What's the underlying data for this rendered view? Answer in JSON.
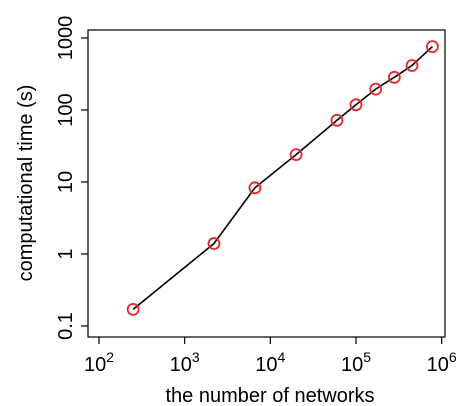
{
  "chart_data": {
    "type": "line",
    "xlabel": "the number of networks",
    "ylabel": "computational time (s)",
    "x_scale": "log",
    "y_scale": "log",
    "xlim": [
      100,
      1000000
    ],
    "ylim": [
      0.1,
      1000
    ],
    "x_ticks": [
      {
        "value": 100,
        "base": "10",
        "exp": "2"
      },
      {
        "value": 1000,
        "base": "10",
        "exp": "3"
      },
      {
        "value": 10000,
        "base": "10",
        "exp": "4"
      },
      {
        "value": 100000,
        "base": "10",
        "exp": "5"
      },
      {
        "value": 1000000,
        "base": "10",
        "exp": "6"
      }
    ],
    "y_ticks": [
      {
        "value": 0.1,
        "label": "0.1"
      },
      {
        "value": 1,
        "label": "1"
      },
      {
        "value": 10,
        "label": "10"
      },
      {
        "value": 100,
        "label": "100"
      },
      {
        "value": 1000,
        "label": "1000"
      }
    ],
    "grid": false,
    "series": [
      {
        "x": [
          250,
          2200,
          6600,
          20000,
          60000,
          100000,
          170000,
          280000,
          450000,
          780000
        ],
        "y": [
          0.17,
          1.4,
          8.3,
          24,
          72,
          118,
          195,
          285,
          415,
          760
        ],
        "line_color": "#000000",
        "marker": "open-circle",
        "marker_color": "#e8262a"
      }
    ]
  }
}
